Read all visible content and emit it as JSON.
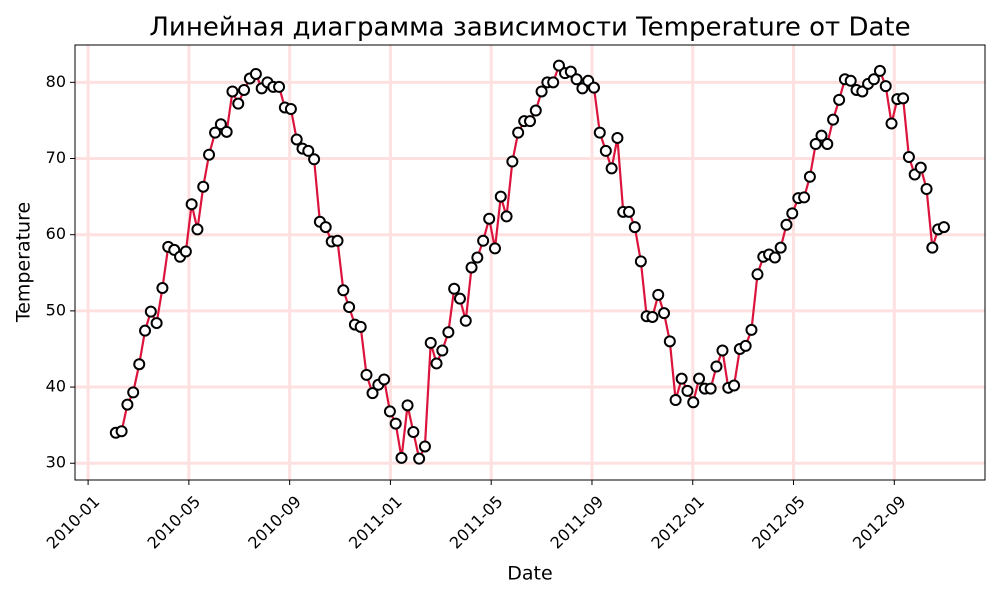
{
  "chart_data": {
    "type": "line",
    "title": "Линейная диаграмма зависимости Temperature от Date",
    "x_label": "Date",
    "y_label": "Temperature",
    "x": [
      1.1,
      1.33,
      1.56,
      1.79,
      2.03,
      2.26,
      2.49,
      2.72,
      2.95,
      3.18,
      3.42,
      3.65,
      3.88,
      4.11,
      4.34,
      4.57,
      4.8,
      5.04,
      5.27,
      5.5,
      5.73,
      5.96,
      6.19,
      6.42,
      6.66,
      6.89,
      7.12,
      7.35,
      7.58,
      7.81,
      8.05,
      8.28,
      8.51,
      8.74,
      8.97,
      9.2,
      9.43,
      9.67,
      9.9,
      10.13,
      10.36,
      10.59,
      10.82,
      11.05,
      11.29,
      11.52,
      11.75,
      11.98,
      12.21,
      12.44,
      12.68,
      12.91,
      13.14,
      13.37,
      13.6,
      13.83,
      14.06,
      14.3,
      14.53,
      14.76,
      14.99,
      15.22,
      15.45,
      15.68,
      15.92,
      16.15,
      16.38,
      16.61,
      16.84,
      17.07,
      17.31,
      17.54,
      17.77,
      18.0,
      18.23,
      18.46,
      18.69,
      18.93,
      19.16,
      19.39,
      19.62,
      19.85,
      20.08,
      20.31,
      20.55,
      20.78,
      21.01,
      21.24,
      21.47,
      21.7,
      21.94,
      22.17,
      22.4,
      22.63,
      22.86,
      23.09,
      23.32,
      23.56,
      23.79,
      24.02,
      24.25,
      24.48,
      24.71,
      24.94,
      25.18,
      25.41,
      25.64,
      25.87,
      26.1,
      26.33,
      26.57,
      26.8,
      27.03,
      27.26,
      27.49,
      27.72,
      27.95,
      28.19,
      28.42,
      28.65,
      28.88,
      29.11,
      29.34,
      29.57,
      29.81,
      30.04,
      30.27,
      30.5,
      30.73,
      30.96,
      31.19,
      31.43,
      31.66,
      31.89,
      32.12,
      32.35,
      32.58,
      32.81,
      33.05,
      33.28,
      33.51,
      33.74,
      33.97
    ],
    "series": [
      {
        "name": "Temperature",
        "color": "#dc143c",
        "marker_fill": "#ffffff",
        "marker_edge": "#000000",
        "values": [
          34.0,
          34.2,
          37.7,
          39.3,
          43.0,
          47.4,
          49.9,
          48.4,
          53.0,
          58.4,
          58.0,
          57.1,
          57.8,
          64.0,
          60.7,
          66.3,
          70.5,
          73.4,
          74.5,
          73.5,
          78.8,
          77.2,
          79.0,
          80.5,
          81.1,
          79.2,
          80.0,
          79.4,
          79.4,
          76.7,
          76.5,
          72.5,
          71.3,
          71.0,
          69.9,
          61.7,
          61.0,
          59.1,
          59.2,
          52.7,
          50.5,
          48.2,
          47.9,
          41.6,
          39.2,
          40.3,
          41.0,
          36.8,
          35.2,
          30.7,
          37.6,
          34.1,
          30.6,
          32.2,
          45.8,
          43.1,
          44.8,
          47.2,
          52.9,
          51.6,
          48.7,
          55.7,
          57.0,
          59.2,
          62.1,
          58.2,
          65.0,
          62.4,
          69.6,
          73.4,
          74.9,
          74.9,
          76.3,
          78.8,
          80.0,
          80.0,
          82.2,
          81.2,
          81.4,
          80.4,
          79.2,
          80.2,
          79.3,
          73.4,
          71.0,
          68.7,
          72.7,
          63.0,
          63.0,
          61.0,
          56.5,
          49.3,
          49.2,
          52.1,
          49.7,
          46.0,
          38.3,
          41.1,
          39.5,
          38.0,
          41.1,
          39.8,
          39.8,
          42.7,
          44.8,
          39.9,
          40.2,
          45.0,
          45.4,
          47.5,
          54.8,
          57.1,
          57.4,
          57.0,
          58.3,
          61.3,
          62.8,
          64.8,
          64.9,
          67.6,
          71.9,
          73.0,
          71.9,
          75.1,
          77.7,
          80.4,
          80.2,
          79.0,
          78.8,
          79.8,
          80.4,
          81.5,
          79.5,
          74.6,
          77.8,
          77.9,
          70.2,
          67.9,
          68.8,
          66.0,
          58.3,
          60.7,
          61.0
        ]
      }
    ],
    "xlim": [
      -0.52,
      35.6
    ],
    "xticks": [
      {
        "value": 0,
        "label": "2010-01"
      },
      {
        "value": 4,
        "label": "2010-05"
      },
      {
        "value": 8,
        "label": "2010-09"
      },
      {
        "value": 12,
        "label": "2011-01"
      },
      {
        "value": 16,
        "label": "2011-05"
      },
      {
        "value": 20,
        "label": "2011-09"
      },
      {
        "value": 24,
        "label": "2012-01"
      },
      {
        "value": 28,
        "label": "2012-05"
      },
      {
        "value": 32,
        "label": "2012-09"
      }
    ],
    "ylim": [
      27.8,
      84.9
    ],
    "yticks": [
      30,
      40,
      50,
      60,
      70,
      80
    ],
    "grid": true,
    "grid_color": "#ffe0e0"
  }
}
